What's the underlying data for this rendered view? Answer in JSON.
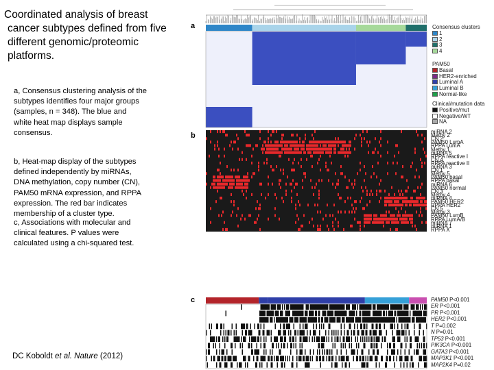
{
  "slide": {
    "title_lines": [
      "Coordinated analysis of breast",
      "cancer subtypes defined from five",
      "different genomic/proteomic",
      "platforms."
    ],
    "para_a": [
      "a, Consensus clustering analysis of the",
      "subtypes identifies four major groups",
      "(samples, n = 348). The blue and",
      "white heat map displays sample",
      "consensus."
    ],
    "para_b": [
      "b, Heat-map display of the subtypes",
      "defined independently by miRNAs,",
      "DNA methylation, copy number (CN),",
      "PAM50 mRNA expression, and RPPA",
      "expression. The red bar indicates",
      "membership of a cluster type."
    ],
    "para_c": [
      "c, Associations with molecular and",
      "clinical features. P values were",
      "calculated using a chi-squared test."
    ],
    "citation_pre": "DC Koboldt ",
    "citation_em": "et al. Nature",
    "citation_post": " (2012)"
  },
  "figure": {
    "panel_a": "a",
    "panel_b": "b",
    "panel_c": "c",
    "consensus_title": "Consensus clusters",
    "consensus_items": [
      {
        "label": "1",
        "color": "#2e86c8"
      },
      {
        "label": "2",
        "color": "#a9d4ea"
      },
      {
        "label": "3",
        "color": "#1f6f6a"
      },
      {
        "label": "4",
        "color": "#a6d99a"
      }
    ],
    "pam50_title": "PAM50",
    "pam50_items": [
      {
        "label": "Basal",
        "color": "#b3242a"
      },
      {
        "label": "HER2-enriched",
        "color": "#7b2a87"
      },
      {
        "label": "Luminal A",
        "color": "#2f3fa8"
      },
      {
        "label": "Luminal B",
        "color": "#35a0d8"
      },
      {
        "label": "Normal-like",
        "color": "#1f9f4a"
      }
    ],
    "clinical_title": "Clinical/mutation data",
    "clinical_items": [
      {
        "label": "Positive/mut",
        "color": "#111111"
      },
      {
        "label": "Negative/WT",
        "color": "#ffffff"
      },
      {
        "label": "NA",
        "color": "#aaaaaa"
      }
    ],
    "b_rows": [
      "miRNA 2",
      "Methy 2",
      "CN 2",
      "PAM50 LumA",
      "RPPA LumA",
      "Methy 1",
      "miRNA 5",
      "RPPA reactive I",
      "CN 4",
      "RPPA reactive II",
      "miRNA 3",
      "CN 1",
      "Methy 5",
      "PAM50 basal",
      "RPPA basal",
      "miRNA 6",
      "PAM50 normal",
      "CN 3",
      "Methy 4",
      "miRNA 4",
      "PAM50 HER2",
      "RPPA HER2",
      "CN 5",
      "Methy 3",
      "PAM50 LumB",
      "RPPA LumA/B",
      "miRNA 7",
      "miRNA 1",
      "RPPA X"
    ],
    "c_rows": [
      {
        "name": "PAM50",
        "p": " P<0.001"
      },
      {
        "name": "ER",
        "p": " P<0.001"
      },
      {
        "name": "PR",
        "p": " P<0.001"
      },
      {
        "name": "HER2",
        "p": " P<0.001"
      },
      {
        "name": "T",
        "p": " P=0.002"
      },
      {
        "name": "N",
        "p": " P=0.01"
      },
      {
        "name": "TP53",
        "p": " P<0.001"
      },
      {
        "name": "PIK3CA",
        "p": " P<0.001"
      },
      {
        "name": "GATA3",
        "p": " P<0.001"
      },
      {
        "name": "MAP3K1",
        "p": " P<0.001"
      },
      {
        "name": "MAP2K4",
        "p": " P=0.02"
      }
    ]
  }
}
